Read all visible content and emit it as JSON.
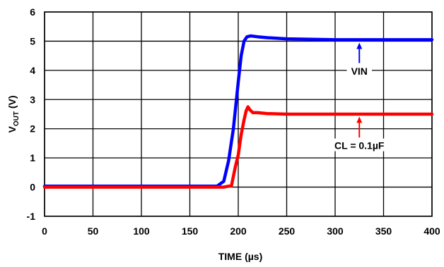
{
  "chart_data": {
    "type": "line",
    "xlabel": "TIME (µs)",
    "ylabel": {
      "main": "V",
      "sub": "OUT",
      "suffix": " (V)"
    },
    "xlim": [
      0,
      400
    ],
    "ylim": [
      -1,
      6
    ],
    "x_ticks": [
      "0",
      "50",
      "100",
      "150",
      "200",
      "250",
      "300",
      "350",
      "400"
    ],
    "y_ticks": [
      "-1",
      "0",
      "1",
      "2",
      "3",
      "4",
      "5",
      "6"
    ],
    "grid": true,
    "series": [
      {
        "name": "VIN",
        "color": "#0000ff",
        "x": [
          0,
          178,
          185,
          190,
          195,
          200,
          203,
          206,
          209,
          213,
          220,
          230,
          250,
          300,
          350,
          400
        ],
        "y": [
          0.03,
          0.03,
          0.2,
          0.9,
          2.0,
          3.6,
          4.5,
          5.0,
          5.15,
          5.18,
          5.15,
          5.12,
          5.08,
          5.05,
          5.05,
          5.05
        ]
      },
      {
        "name": "CL = 0.1µF",
        "color": "#ff0000",
        "x": [
          0,
          185,
          193,
          197,
          200,
          203,
          206,
          208,
          210,
          212,
          215,
          220,
          230,
          250,
          300,
          400
        ],
        "y": [
          0.0,
          0.0,
          0.05,
          0.7,
          1.1,
          1.8,
          2.3,
          2.6,
          2.75,
          2.65,
          2.55,
          2.55,
          2.52,
          2.5,
          2.5,
          2.5
        ]
      }
    ],
    "annotations": [
      {
        "label": "VIN",
        "arrow_x": 325,
        "arrow_tip_y": 4.95,
        "arrow_tail_y": 4.25,
        "label_y": 3.9
      },
      {
        "label": "CL = 0.1µF",
        "arrow_x": 325,
        "arrow_tip_y": 2.42,
        "arrow_tail_y": 1.7,
        "label_y": 1.35
      }
    ]
  }
}
